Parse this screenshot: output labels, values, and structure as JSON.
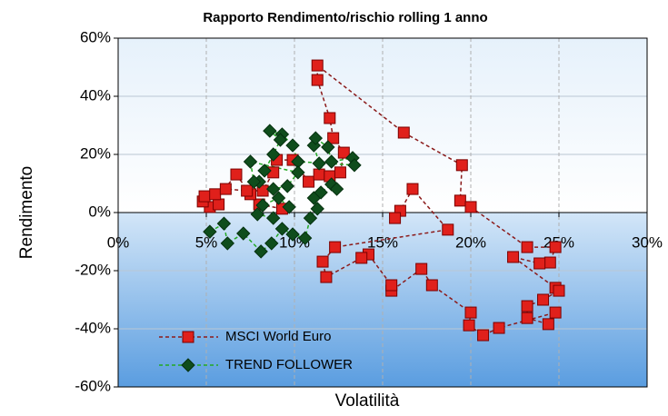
{
  "chart_data": {
    "type": "scatter",
    "title": "Rapporto Rendimento/rischio rolling 1 anno",
    "x_label": "Volatilità",
    "y_label": "Rendimento",
    "xlim": [
      0,
      30
    ],
    "ylim": [
      -60,
      60
    ],
    "xticks": [
      {
        "value": 0,
        "label": "0%"
      },
      {
        "value": 5,
        "label": "5%"
      },
      {
        "value": 10,
        "label": "10%"
      },
      {
        "value": 15,
        "label": "15%"
      },
      {
        "value": 20,
        "label": "20%"
      },
      {
        "value": 25,
        "label": "25%"
      },
      {
        "value": 30,
        "label": "30%"
      }
    ],
    "yticks": [
      {
        "value": -60,
        "label": "-60%"
      },
      {
        "value": -40,
        "label": "-40%"
      },
      {
        "value": -20,
        "label": "-20%"
      },
      {
        "value": 0,
        "label": "0%"
      },
      {
        "value": 20,
        "label": "20%"
      },
      {
        "value": 40,
        "label": "40%"
      },
      {
        "value": 60,
        "label": "60%"
      }
    ],
    "grid": true,
    "legend_position": "lower left",
    "series": [
      {
        "name": "MSCI World Euro",
        "color": "#e0201b",
        "line_color": "#8b1a1a",
        "marker": "square",
        "line_style": "dashed",
        "x": [
          9.3,
          8.0,
          7.5,
          6.7,
          5.2,
          5.7,
          4.8,
          4.9,
          5.5,
          6.1,
          7.3,
          8.2,
          8.8,
          9.0,
          9.9,
          10.8,
          11.4,
          12.0,
          12.6,
          12.8,
          12.2,
          12.0,
          11.3,
          11.3,
          16.2,
          19.5,
          19.4,
          20.0,
          23.2,
          24.8,
          24.5,
          23.9,
          22.4,
          24.8,
          25.0,
          24.1,
          23.2,
          23.2,
          24.4,
          24.8,
          21.6,
          20.7,
          19.9,
          20.0,
          17.8,
          17.2,
          15.5,
          15.5,
          14.2,
          13.8,
          11.8,
          11.6,
          12.3,
          18.7,
          16.7,
          16.0,
          15.7
        ],
        "values": [
          1.3,
          2.8,
          6.3,
          13.1,
          1.9,
          2.8,
          3.8,
          5.6,
          6.3,
          8.1,
          7.5,
          7.5,
          13.8,
          18.1,
          18.1,
          10.6,
          13.1,
          12.5,
          13.8,
          20.6,
          25.6,
          32.5,
          45.6,
          50.6,
          27.5,
          16.3,
          4.1,
          1.9,
          -11.9,
          -11.9,
          -17.2,
          -17.5,
          -15.3,
          -25.9,
          -26.9,
          -30.0,
          -32.2,
          -36.3,
          -38.4,
          -34.4,
          -39.7,
          -42.2,
          -38.8,
          -34.4,
          -25.0,
          -19.4,
          -26.9,
          -25.0,
          -14.4,
          -15.6,
          -22.2,
          -16.9,
          -11.9,
          -5.9,
          8.1,
          0.6,
          -1.9
        ]
      },
      {
        "name": "TREND FOLLOWER",
        "color": "#0f4d1c",
        "line_color": "#22a822",
        "marker": "diamond",
        "line_style": "dashed",
        "x": [
          5.2,
          6.0,
          6.2,
          7.1,
          8.1,
          8.7,
          9.3,
          9.9,
          10.6,
          10.9,
          11.3,
          11.1,
          11.5,
          12.1,
          12.4,
          11.4,
          11.1,
          11.2,
          11.9,
          12.1,
          13.3,
          13.4,
          10.2,
          9.9,
          9.3,
          8.6,
          9.2,
          8.8,
          8.3,
          8.0,
          8.8,
          9.6,
          10.2,
          7.5,
          7.7,
          7.9,
          8.8,
          9.7,
          9.1,
          8.2
        ],
        "values": [
          -6.6,
          -3.8,
          -10.6,
          -7.2,
          -13.4,
          -10.6,
          -5.6,
          -7.5,
          -8.8,
          -1.9,
          1.3,
          5.0,
          6.9,
          9.7,
          8.1,
          16.9,
          23.1,
          25.6,
          22.5,
          17.5,
          18.8,
          16.3,
          17.5,
          23.1,
          26.9,
          28.1,
          25.0,
          20.0,
          14.4,
          10.6,
          8.1,
          9.1,
          13.8,
          17.5,
          10.6,
          -0.6,
          -1.9,
          1.9,
          5.0,
          2.5
        ]
      }
    ]
  }
}
